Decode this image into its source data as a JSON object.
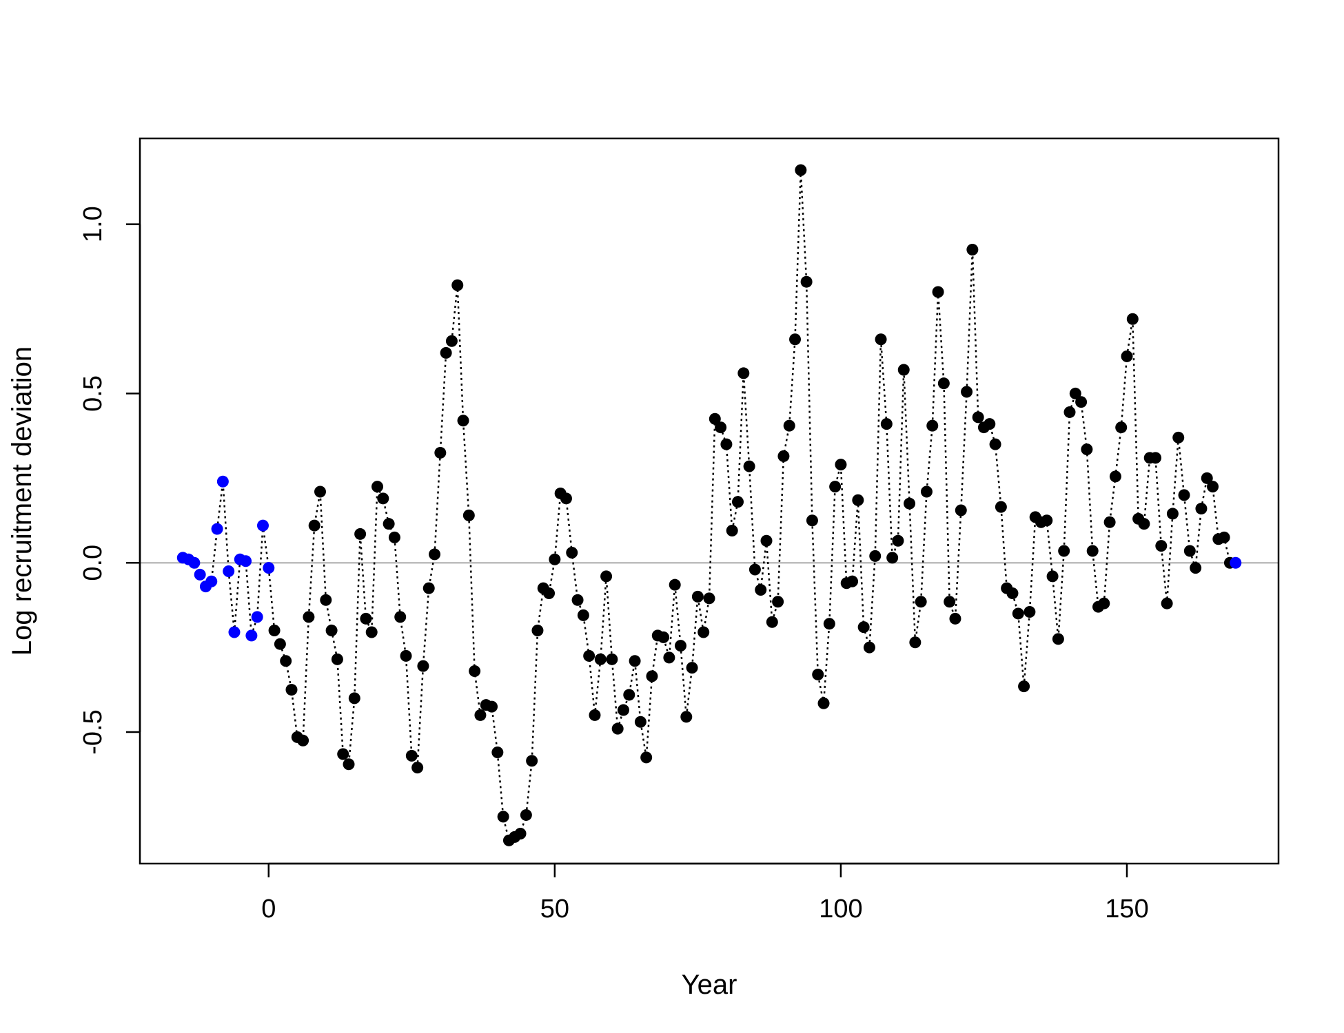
{
  "chart_data": {
    "type": "scatter",
    "title": "",
    "xlabel": "Year",
    "ylabel": "Log recruitment deviation",
    "xlim": [
      -22.5,
      176.5
    ],
    "ylim": [
      -0.8885,
      1.2535
    ],
    "x_ticks": [
      {
        "value": 0,
        "label": "0"
      },
      {
        "value": 50,
        "label": "50"
      },
      {
        "value": 100,
        "label": "100"
      },
      {
        "value": 150,
        "label": "150"
      }
    ],
    "y_ticks": [
      {
        "value": -0.5,
        "label": "-0.5"
      },
      {
        "value": 0.0,
        "label": "0.0"
      },
      {
        "value": 0.5,
        "label": "0.5"
      },
      {
        "value": 1.0,
        "label": "1.0"
      }
    ],
    "reference_line": {
      "y": 0,
      "color": "#bebebe"
    },
    "line_style": "dotted",
    "grid": false,
    "legend": false,
    "colors": {
      "early": "#0000ff",
      "main": "#000000"
    },
    "series": [
      {
        "color": "#0000ff",
        "x": [
          -15,
          -14,
          -13,
          -12,
          -11,
          -10,
          -9,
          -8,
          -7,
          -6,
          -5,
          -4,
          -3,
          -2,
          -1,
          0
        ],
        "values": [
          0.015,
          0.01,
          0.0,
          -0.035,
          -0.07,
          -0.055,
          0.1,
          0.24,
          -0.025,
          -0.205,
          0.01,
          0.005,
          -0.215,
          -0.16,
          0.11,
          -0.015
        ]
      },
      {
        "color": "#000000",
        "x": [
          1,
          2,
          3,
          4,
          5,
          6,
          7,
          8,
          9,
          10,
          11,
          12,
          13,
          14,
          15,
          16,
          17,
          18,
          19,
          20,
          21,
          22,
          23,
          24,
          25,
          26,
          27,
          28,
          29,
          30,
          31,
          32,
          33,
          34,
          35,
          36,
          37,
          38,
          39,
          40,
          41,
          42,
          43,
          44,
          45,
          46,
          47,
          48,
          49,
          50,
          51,
          52,
          53,
          54,
          55,
          56,
          57,
          58,
          59,
          60,
          61,
          62,
          63,
          64,
          65,
          66,
          67,
          68,
          69,
          70,
          71,
          72,
          73,
          74,
          75,
          76,
          77,
          78,
          79,
          80,
          81,
          82,
          83,
          84,
          85,
          86,
          87,
          88,
          89,
          90,
          91,
          92,
          93,
          94,
          95,
          96,
          97,
          98,
          99,
          100,
          101,
          102,
          103,
          104,
          105,
          106,
          107,
          108,
          109,
          110,
          111,
          112,
          113,
          114,
          115,
          116,
          117,
          118,
          119,
          120,
          121,
          122,
          123,
          124,
          125,
          126,
          127,
          128,
          129,
          130,
          131,
          132,
          133,
          134,
          135,
          136,
          137,
          138,
          139,
          140,
          141,
          142,
          143,
          144,
          145,
          146,
          147,
          148,
          149,
          150,
          151,
          152,
          153,
          154,
          155,
          156,
          157,
          158,
          159,
          160,
          161,
          162,
          163,
          164,
          165,
          166,
          167,
          168
        ],
        "values": [
          -0.2,
          -0.24,
          -0.29,
          -0.375,
          -0.515,
          -0.525,
          -0.16,
          0.11,
          0.21,
          -0.11,
          -0.2,
          -0.285,
          -0.565,
          -0.595,
          -0.4,
          0.085,
          -0.165,
          -0.205,
          0.225,
          0.19,
          0.115,
          0.075,
          -0.16,
          -0.275,
          -0.57,
          -0.605,
          -0.305,
          -0.075,
          0.025,
          0.325,
          0.62,
          0.655,
          0.82,
          0.42,
          0.14,
          -0.32,
          -0.45,
          -0.42,
          -0.425,
          -0.56,
          -0.75,
          -0.82,
          -0.81,
          -0.8,
          -0.745,
          -0.585,
          -0.2,
          -0.075,
          -0.09,
          0.01,
          0.205,
          0.19,
          0.03,
          -0.11,
          -0.155,
          -0.275,
          -0.45,
          -0.285,
          -0.04,
          -0.285,
          -0.49,
          -0.435,
          -0.39,
          -0.29,
          -0.47,
          -0.575,
          -0.335,
          -0.215,
          -0.22,
          -0.28,
          -0.065,
          -0.245,
          -0.455,
          -0.31,
          -0.1,
          -0.205,
          -0.105,
          0.425,
          0.4,
          0.35,
          0.095,
          0.18,
          0.56,
          0.285,
          -0.02,
          -0.08,
          0.065,
          -0.175,
          -0.115,
          0.315,
          0.405,
          0.66,
          1.16,
          0.83,
          0.125,
          -0.33,
          -0.415,
          -0.18,
          0.225,
          0.29,
          -0.06,
          -0.055,
          0.185,
          -0.19,
          -0.25,
          0.02,
          0.66,
          0.41,
          0.015,
          0.065,
          0.57,
          0.175,
          -0.235,
          -0.115,
          0.21,
          0.405,
          0.8,
          0.53,
          -0.115,
          -0.165,
          0.155,
          0.505,
          0.925,
          0.43,
          0.4,
          0.41,
          0.35,
          0.165,
          -0.075,
          -0.09,
          -0.15,
          -0.365,
          -0.145,
          0.135,
          0.12,
          0.125,
          -0.04,
          -0.225,
          0.035,
          0.445,
          0.5,
          0.475,
          0.335,
          0.035,
          -0.13,
          -0.12,
          0.12,
          0.255,
          0.4,
          0.61,
          0.72,
          0.13,
          0.115,
          0.31,
          0.31,
          0.05,
          -0.12,
          0.145,
          0.37,
          0.2,
          0.035,
          -0.015,
          0.16,
          0.25,
          0.225,
          0.07,
          0.075,
          0.0
        ]
      },
      {
        "color": "#0000ff",
        "x": [
          169
        ],
        "values": [
          0.0
        ]
      }
    ]
  }
}
